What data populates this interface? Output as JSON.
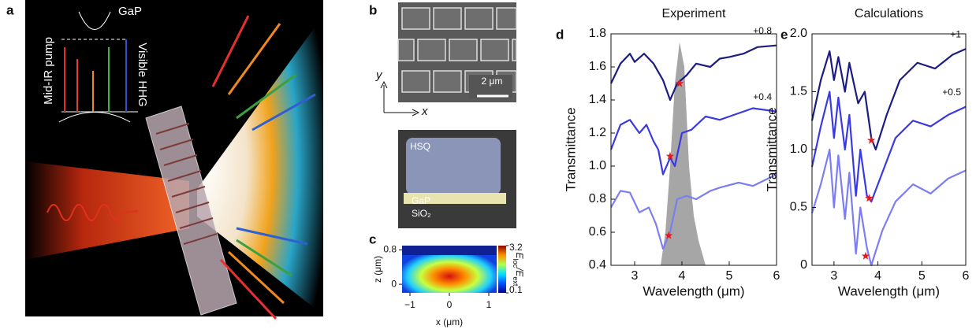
{
  "panels": {
    "labels": [
      "a",
      "b",
      "c",
      "d",
      "e"
    ],
    "a": {
      "material": "GaP",
      "pump": "Mid-IR pump",
      "harmonics": "Visible HHG"
    },
    "b": {
      "y_axis": "y",
      "x_axis": "x",
      "scale_bar": "2 μm",
      "top_layer": "HSQ",
      "middle_layer": "GaP",
      "substrate": "SiO₂"
    },
    "c": {
      "xlabel": "x (μm)",
      "ylabel": "z (μm)",
      "xlim": [
        -1.2,
        1.2
      ],
      "xticks": [
        {
          "value": -1,
          "label": "−1"
        },
        0,
        1
      ],
      "ylim": [
        -0.2,
        0.9
      ],
      "yticks": [
        0,
        0.8
      ],
      "clim": [
        0.1,
        3.2
      ],
      "cticks": [
        0.1,
        3.2
      ],
      "colorbar_label": [
        "E",
        "loc",
        "/E",
        "ext"
      ]
    }
  },
  "chart_data": [
    {
      "type": "line",
      "title": "Experiment",
      "xlabel": "Wavelength (μm)",
      "ylabel": "Transmittance",
      "xlim": [
        2.5,
        6
      ],
      "xticks": [
        3,
        4,
        5,
        6
      ],
      "ylim": [
        0.4,
        1.8
      ],
      "yticks": [
        0.4,
        0.6,
        0.8,
        {
          "value": 1,
          "label": "1.0"
        },
        1.2,
        1.4,
        1.6,
        1.8
      ],
      "area": {
        "color": "#a6a6a6",
        "x": [
          3.55,
          3.65,
          3.75,
          3.85,
          3.95,
          4.05,
          4.15,
          4.25,
          4.35,
          4.5
        ],
        "values": [
          0.4,
          0.6,
          1.0,
          1.5,
          1.75,
          1.6,
          1.0,
          0.7,
          0.55,
          0.4
        ]
      },
      "series": [
        {
          "color": "#1c1c80",
          "label": "+0.8",
          "x": [
            2.5,
            2.7,
            2.9,
            3.0,
            3.2,
            3.4,
            3.6,
            3.75,
            3.9,
            4.1,
            4.3,
            4.6,
            4.8,
            5.0,
            5.3,
            5.6,
            6.0
          ],
          "values": [
            1.5,
            1.62,
            1.68,
            1.63,
            1.68,
            1.62,
            1.52,
            1.4,
            1.5,
            1.55,
            1.62,
            1.6,
            1.65,
            1.66,
            1.68,
            1.72,
            1.73
          ]
        },
        {
          "color": "#3a3ae0",
          "label": "+0.4",
          "x": [
            2.5,
            2.7,
            2.9,
            3.1,
            3.25,
            3.4,
            3.5,
            3.6,
            3.75,
            3.85,
            4.0,
            4.2,
            4.5,
            4.8,
            5.0,
            5.5,
            6.0
          ],
          "values": [
            1.1,
            1.25,
            1.28,
            1.2,
            1.25,
            1.15,
            1.1,
            0.95,
            1.05,
            1.0,
            1.2,
            1.22,
            1.3,
            1.28,
            1.3,
            1.35,
            1.33
          ]
        },
        {
          "color": "#7d7df2",
          "x": [
            2.5,
            2.7,
            2.9,
            3.1,
            3.3,
            3.45,
            3.6,
            3.75,
            3.9,
            4.1,
            4.3,
            4.6,
            4.8,
            5.2,
            5.5,
            6.0
          ],
          "values": [
            0.75,
            0.85,
            0.84,
            0.72,
            0.75,
            0.65,
            0.5,
            0.6,
            0.8,
            0.82,
            0.8,
            0.85,
            0.87,
            0.9,
            0.88,
            0.95
          ]
        }
      ],
      "markers": {
        "color": "#e8191e",
        "x": [
          3.95,
          3.75,
          3.72
        ],
        "values": [
          1.5,
          1.06,
          0.58
        ]
      }
    },
    {
      "type": "line",
      "title": "Calculations",
      "xlabel": "Wavelength (μm)",
      "ylabel": "Transmittance",
      "xlim": [
        2.5,
        6
      ],
      "xticks": [
        3,
        4,
        5,
        6
      ],
      "ylim": [
        0,
        2
      ],
      "yticks": [
        0,
        0.5,
        {
          "value": 1,
          "label": "1.0"
        },
        1.5,
        {
          "value": 2,
          "label": "2.0"
        }
      ],
      "series": [
        {
          "color": "#1c1c80",
          "label": "+1",
          "x": [
            2.5,
            2.7,
            2.9,
            3.0,
            3.1,
            3.25,
            3.35,
            3.55,
            3.7,
            3.85,
            3.95,
            4.2,
            4.5,
            4.9,
            5.3,
            5.7,
            6.0
          ],
          "values": [
            1.25,
            1.6,
            1.85,
            1.6,
            1.8,
            1.5,
            1.75,
            1.4,
            1.5,
            1.1,
            1.0,
            1.3,
            1.6,
            1.75,
            1.7,
            1.82,
            1.87
          ]
        },
        {
          "color": "#3a3ae0",
          "label": "+0.5",
          "x": [
            2.5,
            2.7,
            2.9,
            3.0,
            3.1,
            3.25,
            3.35,
            3.5,
            3.6,
            3.75,
            3.85,
            4.1,
            4.4,
            4.8,
            5.2,
            5.6,
            6.0
          ],
          "values": [
            0.85,
            1.2,
            1.5,
            1.1,
            1.45,
            1.0,
            1.3,
            0.6,
            1.0,
            0.6,
            0.55,
            0.8,
            1.1,
            1.25,
            1.2,
            1.3,
            1.37
          ]
        },
        {
          "color": "#7d7df2",
          "x": [
            2.5,
            2.7,
            2.9,
            3.0,
            3.1,
            3.25,
            3.35,
            3.5,
            3.6,
            3.75,
            3.85,
            4.1,
            4.4,
            4.8,
            5.2,
            5.6,
            6.0
          ],
          "values": [
            0.45,
            0.7,
            1.0,
            0.5,
            0.95,
            0.4,
            0.8,
            0.1,
            0.5,
            0.15,
            0.0,
            0.3,
            0.55,
            0.7,
            0.62,
            0.75,
            0.82
          ]
        }
      ],
      "markers": {
        "color": "#e8191e",
        "x": [
          3.85,
          3.8,
          3.72
        ],
        "values": [
          1.08,
          0.58,
          0.08
        ]
      }
    }
  ]
}
